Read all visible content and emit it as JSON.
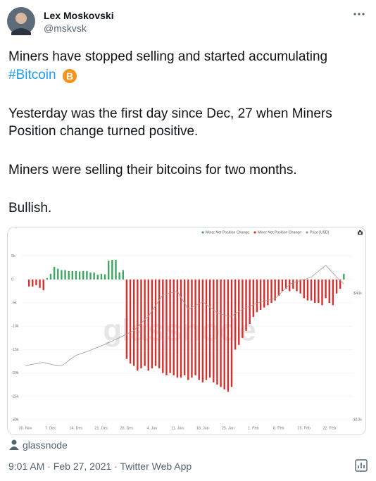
{
  "tweet": {
    "author": {
      "name": "Lex Moskovski",
      "handle": "@mskvsk"
    },
    "text_lines": [
      "Miners have stopped selling and started accumulating",
      "Yesterday was the first day since Dec, 27 when Miners",
      "Position change turned positive.",
      "Miners were selling their bitcoins for two months.",
      "Bullish."
    ],
    "hashtag": "#Bitcoin",
    "attribution": "glassnode",
    "timestamp": "9:01 AM · Feb 27, 2021 · Twitter Web App"
  },
  "chart_data": {
    "type": "bar",
    "watermark": "glassnode",
    "categories": [
      "30. Nov",
      null,
      null,
      null,
      null,
      null,
      null,
      "7. Dec",
      null,
      null,
      null,
      null,
      null,
      null,
      "14. Dec",
      null,
      null,
      null,
      null,
      null,
      null,
      "21. Dec",
      null,
      null,
      null,
      null,
      null,
      null,
      "28. Dec",
      null,
      null,
      null,
      null,
      null,
      null,
      "4. Jan",
      null,
      null,
      null,
      null,
      null,
      null,
      "11. Jan",
      null,
      null,
      null,
      null,
      null,
      null,
      "18. Jan",
      null,
      null,
      null,
      null,
      null,
      null,
      "25. Jan",
      null,
      null,
      null,
      null,
      null,
      null,
      "1. Feb",
      null,
      null,
      null,
      null,
      null,
      null,
      "8. Feb",
      null,
      null,
      null,
      null,
      null,
      null,
      "15. Feb",
      null,
      null,
      null,
      null,
      null,
      null,
      "22. Feb",
      null,
      null,
      null,
      null
    ],
    "series": [
      {
        "name": "Miner Net Position Change",
        "color": "#3fa563",
        "values": [
          null,
          null,
          null,
          null,
          null,
          null,
          300,
          1200,
          2700,
          2300,
          2000,
          2000,
          1800,
          1800,
          1800,
          1700,
          1800,
          1800,
          1500,
          1500,
          1000,
          1200,
          1100,
          4000,
          4200,
          4200,
          1500,
          2000,
          null,
          null,
          null,
          null,
          null,
          null,
          null,
          null,
          null,
          null,
          null,
          null,
          null,
          null,
          null,
          null,
          null,
          null,
          null,
          null,
          null,
          null,
          null,
          null,
          null,
          null,
          null,
          null,
          null,
          null,
          null,
          null,
          null,
          null,
          null,
          null,
          null,
          null,
          null,
          null,
          null,
          null,
          null,
          null,
          null,
          null,
          null,
          null,
          null,
          null,
          null,
          null,
          null,
          null,
          null,
          null,
          null,
          null,
          null,
          null,
          1200
        ]
      },
      {
        "name": "Miner Net Position Change",
        "color": "#d3312f",
        "values": [
          null,
          -1500,
          -1500,
          -1200,
          -1800,
          -2300,
          null,
          null,
          null,
          null,
          null,
          null,
          null,
          null,
          null,
          null,
          null,
          null,
          null,
          null,
          null,
          null,
          null,
          null,
          null,
          null,
          null,
          null,
          -17000,
          -18000,
          -18500,
          -19500,
          -19000,
          -18500,
          -19500,
          -19000,
          -18500,
          -19000,
          -20000,
          -20500,
          -20000,
          -20500,
          -21000,
          -21000,
          -20500,
          -21500,
          -21000,
          -20500,
          -21500,
          -22000,
          -21500,
          -21000,
          -22000,
          -22500,
          -23000,
          -23500,
          -24000,
          -23000,
          -15000,
          -14000,
          -12500,
          -11000,
          -9500,
          -8000,
          -7000,
          -6500,
          -6000,
          -5500,
          -5000,
          -4500,
          -3500,
          -2500,
          -2000,
          -2500,
          -2000,
          -2500,
          -3000,
          -4000,
          -4500,
          -4500,
          -5000,
          -5000,
          -5500,
          -4000,
          -5000,
          -5500,
          -3000,
          -2000,
          null
        ]
      },
      {
        "name": "Price [USD]",
        "color": "#9a9a9a",
        "type": "line",
        "axis": "y2",
        "values": [
          22800,
          23000,
          23200,
          23300,
          23500,
          23600,
          23400,
          23200,
          23000,
          22900,
          22800,
          23400,
          24100,
          24700,
          25300,
          25600,
          25900,
          26200,
          26500,
          26900,
          27200,
          27600,
          27900,
          28300,
          28700,
          29100,
          29500,
          29900,
          30400,
          30800,
          31200,
          32100,
          32900,
          33800,
          34600,
          35900,
          37100,
          38400,
          39700,
          39900,
          40100,
          40300,
          40500,
          39100,
          37700,
          36300,
          36700,
          37100,
          37600,
          38000,
          37400,
          36700,
          36100,
          35400,
          35100,
          34900,
          34600,
          34600,
          35200,
          35700,
          36300,
          36600,
          37000,
          37300,
          37700,
          38000,
          38200,
          38400,
          38600,
          38800,
          39600,
          40500,
          41300,
          42200,
          42500,
          42800,
          43100,
          43300,
          43600,
          43900,
          44600,
          45300,
          46000,
          46700,
          45800,
          44800,
          43900,
          43100,
          42200
        ]
      }
    ],
    "ylim": [
      -30000,
      6000
    ],
    "yticks": [
      {
        "value": 5000,
        "label": "5k"
      },
      0,
      {
        "value": -5000,
        "label": "-5k"
      },
      {
        "value": -10000,
        "label": "-10k"
      },
      {
        "value": -15000,
        "label": "-15k"
      },
      {
        "value": -20000,
        "label": "-20k"
      },
      {
        "value": -25000,
        "label": "-25k"
      },
      {
        "value": -30000,
        "label": "-30k"
      }
    ],
    "y2lim": [
      10000,
      50000
    ],
    "y2ticks": [
      {
        "value": 10000,
        "label": "$10k"
      },
      {
        "value": 40000,
        "label": "$40k"
      }
    ],
    "grid": true
  }
}
